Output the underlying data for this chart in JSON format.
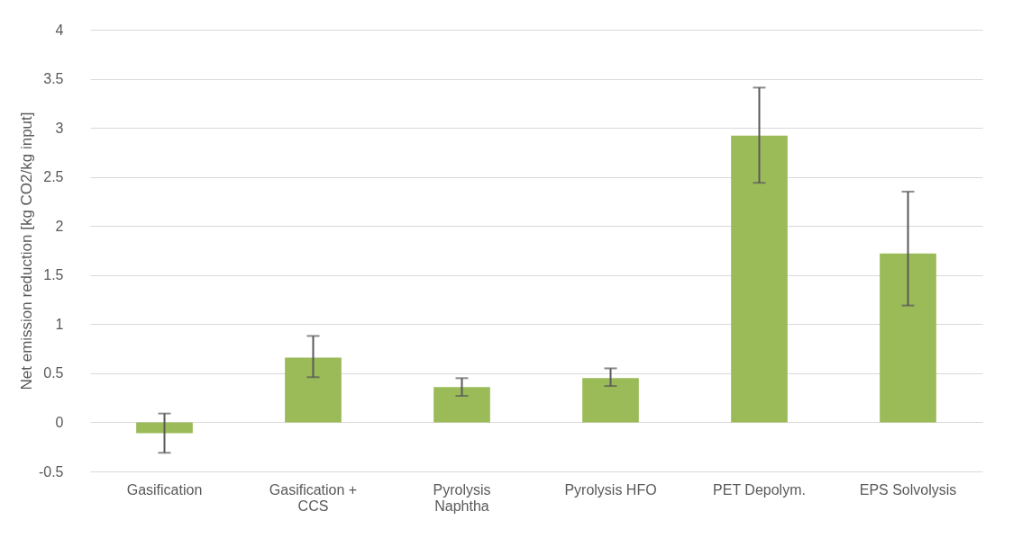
{
  "chart_data": {
    "type": "bar",
    "ylabel": "Net emission reduction [kg CO2/kg input]",
    "categories": [
      "Gasification",
      "Gasification + CCS",
      "Pyrolysis Naphtha",
      "Pyrolysis HFO",
      "PET Depolym.",
      "EPS Solvolysis"
    ],
    "values": [
      -0.11,
      0.66,
      0.36,
      0.45,
      2.92,
      1.72
    ],
    "errors": [
      [
        -0.31,
        0.09
      ],
      [
        0.46,
        0.88
      ],
      [
        0.27,
        0.45
      ],
      [
        0.37,
        0.55
      ],
      [
        2.44,
        3.41
      ],
      [
        1.19,
        2.35
      ]
    ],
    "color": "#9bbb59",
    "ylim": [
      -0.5,
      4
    ],
    "yticks": [
      -0.5,
      0,
      0.5,
      1,
      1.5,
      2,
      2.5,
      3,
      3.5,
      4
    ],
    "grid": "y"
  }
}
